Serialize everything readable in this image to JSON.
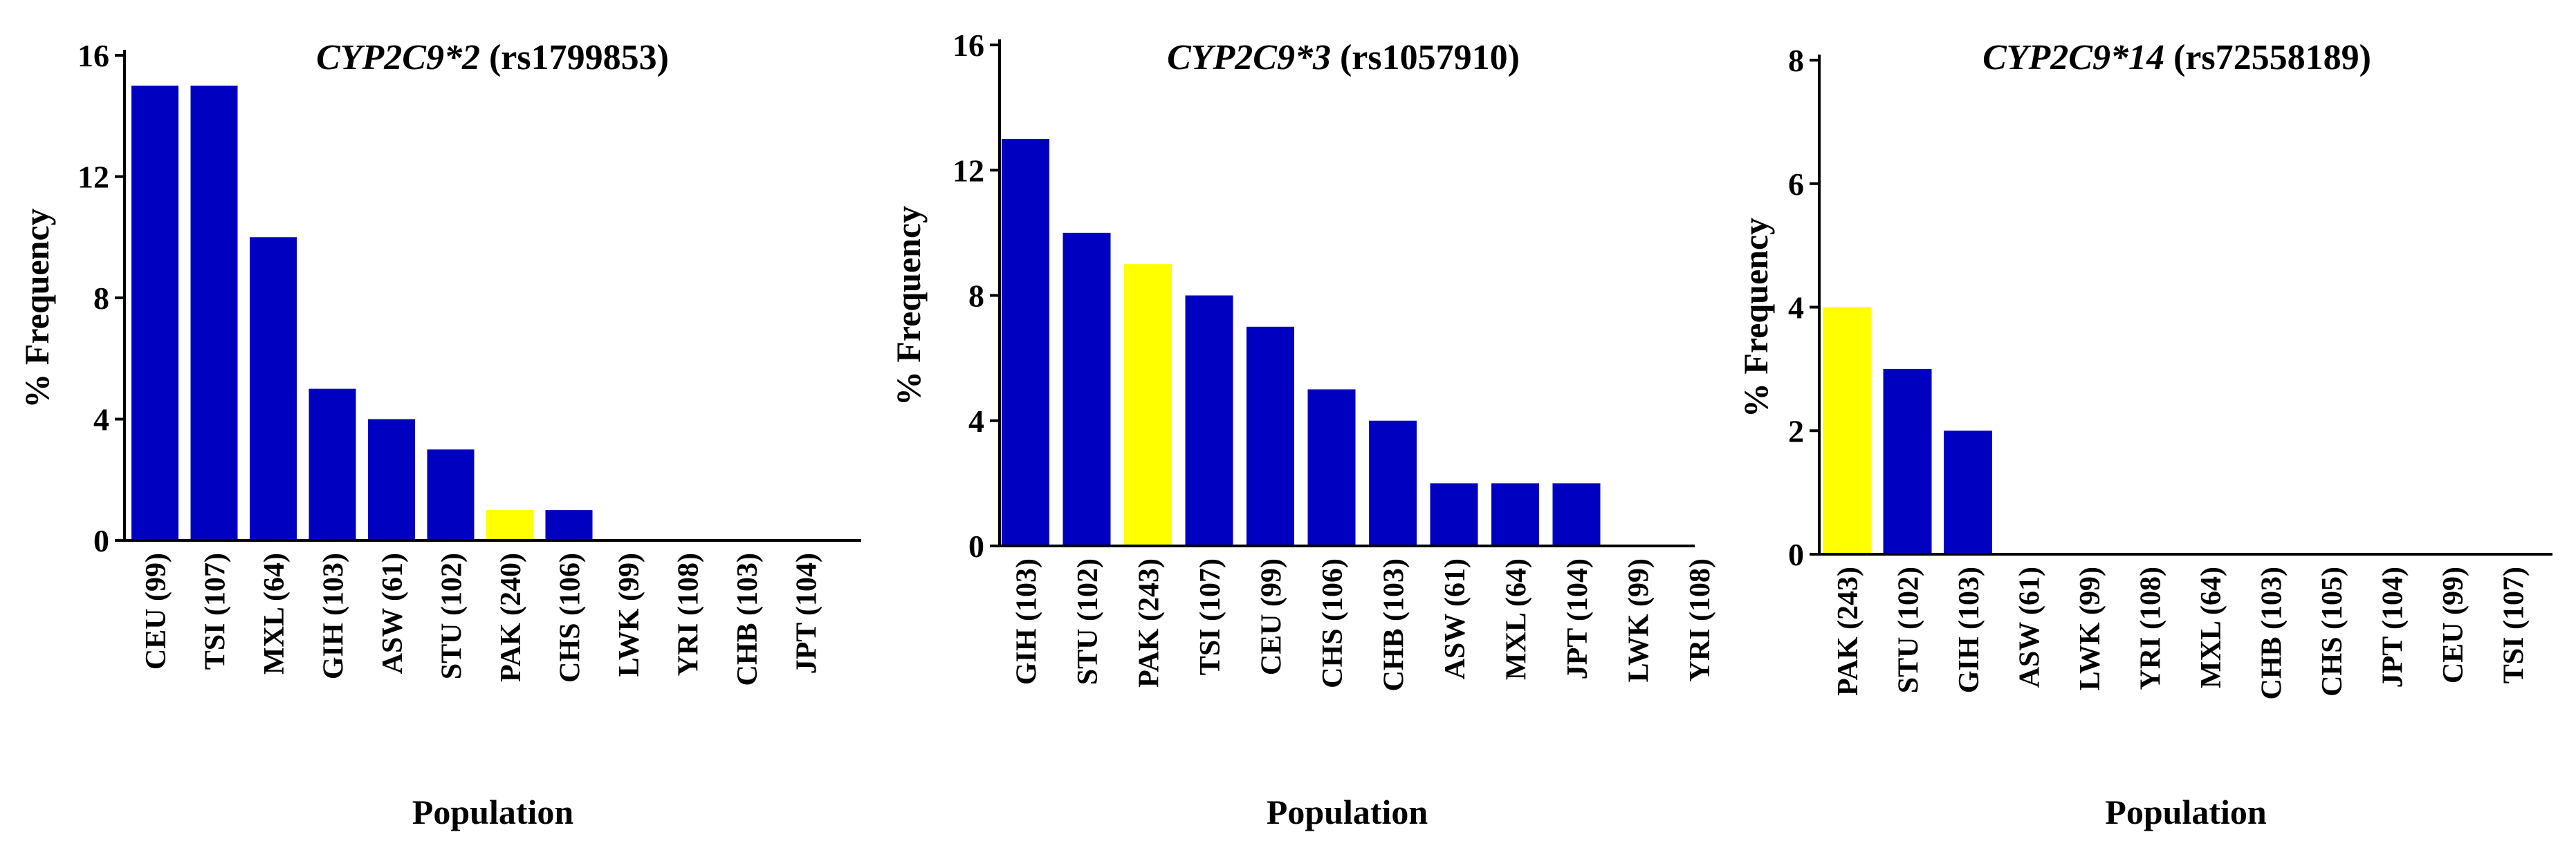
{
  "colors": {
    "default_bar": "#0000C0",
    "highlight_bar": "#FFFF00",
    "axis": "#000000"
  },
  "chart_data": [
    {
      "type": "bar",
      "title_gene": "CYP2C9*2",
      "title_rs": "(rs1799853)",
      "categories": [
        "CEU (99)",
        "TSI (107)",
        "MXL (64)",
        "GIH (103)",
        "ASW (61)",
        "STU (102)",
        "PAK (240)",
        "CHS (106)",
        "LWK (99)",
        "YRI (108)",
        "CHB (103)",
        "JPT (104)"
      ],
      "values": [
        15,
        15,
        10,
        5,
        4,
        3,
        1,
        1,
        0,
        0,
        0,
        0
      ],
      "highlight": "PAK (240)",
      "ylim": [
        0,
        16
      ],
      "yticks": [
        0,
        4,
        8,
        12,
        16
      ],
      "xlabel": "Population",
      "ylabel": "% Frequency"
    },
    {
      "type": "bar",
      "title_gene": "CYP2C9*3",
      "title_rs": "(rs1057910)",
      "categories": [
        "GIH (103)",
        "STU (102)",
        "PAK (243)",
        "TSI (107)",
        "CEU (99)",
        "CHS (106)",
        "CHB (103)",
        "ASW (61)",
        "MXL (64)",
        "JPT (104)",
        "LWK (99)",
        "YRI (108)"
      ],
      "values": [
        13,
        10,
        9,
        8,
        7,
        5,
        4,
        2,
        2,
        2,
        0,
        0
      ],
      "highlight": "PAK (243)",
      "ylim": [
        0,
        16
      ],
      "yticks": [
        0,
        4,
        8,
        12,
        16
      ],
      "xlabel": "Population",
      "ylabel": "% Frequency"
    },
    {
      "type": "bar",
      "title_gene": "CYP2C9*14",
      "title_rs": "(rs72558189)",
      "categories": [
        "PAK (243)",
        "STU (102)",
        "GIH (103)",
        "ASW (61)",
        "LWK (99)",
        "YRI (108)",
        "MXL (64)",
        "CHB (103)",
        "CHS (105)",
        "JPT (104)",
        "CEU (99)",
        "TSI (107)"
      ],
      "values": [
        4,
        3,
        2,
        0,
        0,
        0,
        0,
        0,
        0,
        0,
        0,
        0
      ],
      "highlight": "PAK (243)",
      "ylim": [
        0,
        8
      ],
      "yticks": [
        0,
        2,
        4,
        6,
        8
      ],
      "xlabel": "Population",
      "ylabel": "% Frequency"
    }
  ]
}
